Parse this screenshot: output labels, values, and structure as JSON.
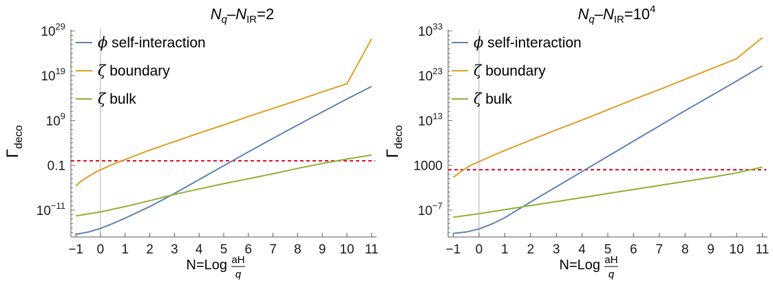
{
  "colors": {
    "phi": "#5e81b5",
    "zeta_boundary": "#e19c24",
    "zeta_bulk": "#8fb032",
    "threshold": "#e8001c",
    "axis": "#555555"
  },
  "chart_data": [
    {
      "type": "line",
      "title_html": "N<tspan font-style=\"italic\" baseline-shift=\"sub\" font-size=\"15\">q</tspan>–N<tspan baseline-shift=\"sub\" font-size=\"15\">IR</tspan>=2",
      "title": "Nq–NIR=2",
      "xlabel": "N=Log aH/q",
      "ylabel": "Γdeco",
      "yscale": "log",
      "xlim": [
        -1.2,
        11.2
      ],
      "ylim_log10": [
        -17,
        29
      ],
      "x_ticks": [
        -1,
        0,
        1,
        2,
        3,
        4,
        5,
        6,
        7,
        8,
        9,
        10,
        11
      ],
      "y_ticks": [
        {
          "exp": 29,
          "label": "10",
          "sup": "29"
        },
        {
          "exp": 19,
          "label": "10",
          "sup": "19"
        },
        {
          "exp": 9,
          "label": "10",
          "sup": "9"
        },
        {
          "exp": -1,
          "label": "0.1",
          "sup": ""
        },
        {
          "exp": -11,
          "label": "10",
          "sup": "−11"
        }
      ],
      "threshold_log10": 0,
      "legend_position": "top-left",
      "series": [
        {
          "name": "ϕ self-interaction",
          "key": "phi",
          "x": [
            -1,
            -0.5,
            0,
            0.5,
            1,
            2,
            3,
            4,
            5,
            6,
            7,
            8,
            9,
            10,
            11
          ],
          "log10y": [
            -16.4,
            -15.9,
            -15.1,
            -14.0,
            -12.8,
            -10.2,
            -7.3,
            -4.2,
            -1.1,
            2.0,
            5.0,
            8.0,
            10.9,
            13.8,
            16.6
          ]
        },
        {
          "name": "ζ boundary",
          "key": "zeta_boundary",
          "x": [
            -1,
            -0.75,
            -0.5,
            -0.25,
            0,
            0.5,
            1,
            2,
            3,
            4,
            5,
            6,
            7,
            8,
            9,
            10,
            11
          ],
          "log10y": [
            -5.6,
            -4.4,
            -3.5,
            -2.7,
            -2.0,
            -0.8,
            0.3,
            2.4,
            4.3,
            6.2,
            8.0,
            9.9,
            11.7,
            13.5,
            15.4,
            17.2,
            27.2
          ]
        },
        {
          "name": "ζ bulk",
          "key": "zeta_bulk",
          "x": [
            -1,
            0,
            1,
            2,
            3,
            4,
            5,
            6,
            7,
            8,
            9,
            10,
            11
          ],
          "log10y": [
            -12.3,
            -11.4,
            -10.2,
            -8.9,
            -7.5,
            -6.3,
            -5.1,
            -4.0,
            -2.9,
            -1.7,
            -0.6,
            0.4,
            1.3
          ]
        }
      ]
    },
    {
      "type": "line",
      "title_html": "N<tspan font-style=\"italic\" baseline-shift=\"sub\" font-size=\"15\">q</tspan>–N<tspan baseline-shift=\"sub\" font-size=\"15\">IR</tspan>=10<tspan baseline-shift=\"super\" font-size=\"15\">4</tspan>",
      "title": "Nq–NIR=10^4",
      "xlabel": "N=Log aH/q",
      "ylabel": "Γdeco",
      "yscale": "log",
      "xlim": [
        -1.2,
        11.2
      ],
      "ylim_log10": [
        -13,
        33
      ],
      "x_ticks": [
        -1,
        0,
        1,
        2,
        3,
        4,
        5,
        6,
        7,
        8,
        9,
        10,
        11
      ],
      "y_ticks": [
        {
          "exp": 33,
          "label": "10",
          "sup": "33"
        },
        {
          "exp": 23,
          "label": "10",
          "sup": "23"
        },
        {
          "exp": 13,
          "label": "10",
          "sup": "13"
        },
        {
          "exp": 3,
          "label": "1000",
          "sup": ""
        },
        {
          "exp": -7,
          "label": "10",
          "sup": "−7"
        }
      ],
      "threshold_log10": 2,
      "legend_position": "top-left",
      "series": [
        {
          "name": "ϕ self-interaction",
          "key": "phi",
          "x": [
            -1,
            -0.5,
            0,
            0.5,
            1,
            2,
            3,
            4,
            5,
            6,
            7,
            8,
            9,
            10,
            11
          ],
          "log10y": [
            -12.2,
            -11.9,
            -11.2,
            -10.1,
            -8.7,
            -5.2,
            -1.8,
            1.6,
            5.0,
            8.4,
            11.8,
            15.2,
            18.5,
            21.8,
            25.2
          ]
        },
        {
          "name": "ζ boundary",
          "key": "zeta_boundary",
          "x": [
            -1,
            -0.75,
            -0.5,
            -0.25,
            0,
            0.5,
            1,
            2,
            3,
            4,
            5,
            6,
            7,
            8,
            9,
            10,
            11
          ],
          "log10y": [
            0.3,
            1.4,
            2.4,
            3.2,
            3.8,
            5.1,
            6.3,
            8.6,
            10.9,
            13.1,
            15.4,
            17.7,
            19.9,
            22.2,
            24.5,
            26.8,
            31.5
          ]
        },
        {
          "name": "ζ bulk",
          "key": "zeta_bulk",
          "x": [
            -1,
            0,
            1,
            2,
            3,
            4,
            5,
            6,
            7,
            8,
            9,
            10,
            11
          ],
          "log10y": [
            -8.6,
            -7.8,
            -6.9,
            -6.0,
            -5.1,
            -4.2,
            -3.3,
            -2.4,
            -1.5,
            -0.6,
            0.3,
            1.3,
            2.6
          ]
        }
      ]
    }
  ]
}
